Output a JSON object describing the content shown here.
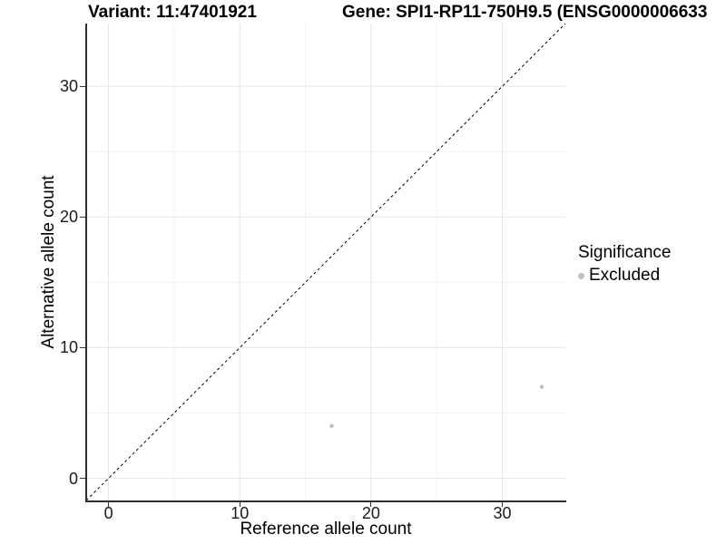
{
  "titles": {
    "variant": "Variant: 11:47401921",
    "gene": "Gene: SPI1-RP11-750H9.5 (ENSG0000006633"
  },
  "chart_data": {
    "type": "scatter",
    "title_variant": "Variant: 11:47401921",
    "title_gene": "Gene: SPI1-RP11-750H9.5 (ENSG0000006633",
    "xlabel": "Reference allele count",
    "ylabel": "Alternative allele count",
    "xlim": [
      -1.7,
      34.8
    ],
    "ylim": [
      -1.7,
      34.8
    ],
    "xticks": [
      0,
      10,
      20,
      30
    ],
    "yticks": [
      0,
      10,
      20,
      30
    ],
    "minor_ticks": [
      5,
      15,
      25
    ],
    "grid": "on",
    "reference_line": {
      "type": "identity",
      "style": "dashed",
      "color": "#000000"
    },
    "series": [
      {
        "name": "Excluded",
        "color": "#bfbfbf",
        "points": [
          {
            "x": 17,
            "y": 4
          },
          {
            "x": 33,
            "y": 7
          }
        ]
      }
    ],
    "legend": {
      "title": "Significance",
      "position": "right",
      "entries": [
        "Excluded"
      ]
    },
    "colors": {
      "point": "#bfbfbf",
      "grid_major": "#e5e5e5",
      "grid_minor": "#f2f2f2",
      "axis_line": "#2e2e2e",
      "tick_mark": "#333333",
      "reference_line": "#000000"
    }
  }
}
